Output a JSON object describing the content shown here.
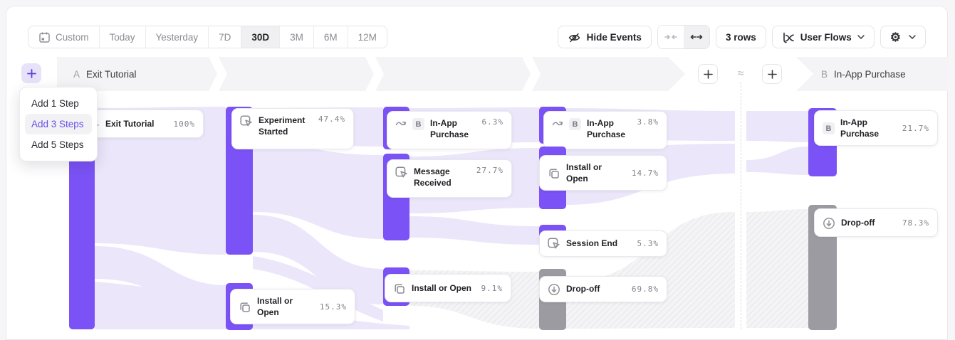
{
  "toolbar": {
    "date_ranges": [
      "Custom",
      "Today",
      "Yesterday",
      "7D",
      "30D",
      "3M",
      "6M",
      "12M"
    ],
    "selected_range": "30D",
    "hide_events_label": "Hide Events",
    "rows_label": "3 rows",
    "chart_type_label": "User Flows"
  },
  "add_step_menu": {
    "items": [
      "Add 1 Step",
      "Add 3 Steps",
      "Add 5 Steps"
    ],
    "highlighted_item": "Add 3 Steps"
  },
  "steps": [
    {
      "badge": "A",
      "label": "Exit Tutorial"
    },
    {
      "badge": "B",
      "label": "In-App Purchase"
    }
  ],
  "approx_symbol": "≈",
  "nodes": [
    {
      "label": "Exit Tutorial",
      "value": "100%",
      "icon": "pointer-square-icon"
    },
    {
      "label": "Experiment Started",
      "value": "47.4%",
      "icon": "pointer-square-icon"
    },
    {
      "label": "In-App Purchase",
      "value": "6.3%",
      "icon": "indirect-arrow-icon",
      "badge": "B"
    },
    {
      "label": "Message Received",
      "value": "27.7%",
      "icon": "pointer-square-icon"
    },
    {
      "label": "Install or Open",
      "value": "9.1%",
      "icon": "overlap-squares-icon"
    },
    {
      "label": "Install or Open",
      "value": "15.3%",
      "icon": "overlap-squares-icon"
    },
    {
      "label": "In-App Purchase",
      "value": "3.8%",
      "icon": "indirect-arrow-icon",
      "badge": "B"
    },
    {
      "label": "Install or Open",
      "value": "14.7%",
      "icon": "overlap-squares-icon"
    },
    {
      "label": "Session End",
      "value": "5.3%",
      "icon": "pointer-square-icon"
    },
    {
      "label": "Drop-off",
      "value": "69.8%",
      "icon": "drop-off-icon"
    },
    {
      "label": "In-App Purchase",
      "value": "21.7%",
      "badge": "B"
    },
    {
      "label": "Drop-off",
      "value": "78.3%",
      "icon": "drop-off-icon"
    }
  ],
  "colors": {
    "accent_purple": "#7b52f6",
    "flow_lavender": "#ebe6fa",
    "dropoff_gray": "#9b9ba1",
    "band_gray": "#f4f4f6",
    "menu_highlight_text": "#6a4de8"
  }
}
